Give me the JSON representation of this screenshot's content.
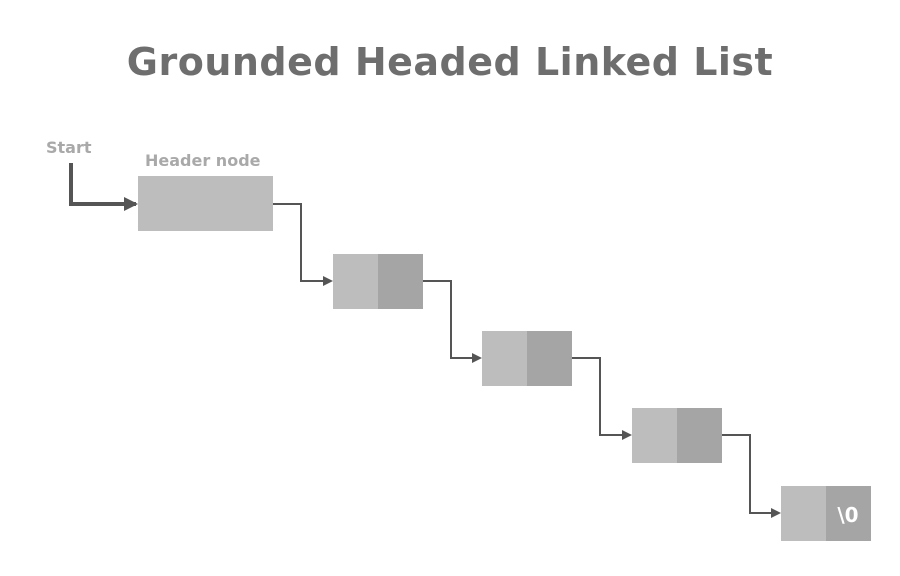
{
  "title": "Grounded Headed Linked List",
  "labels": {
    "start": "Start",
    "header_node": "Header node",
    "null_marker": "\\0"
  },
  "colors": {
    "title": "#6e6e6e",
    "label": "#a9a9a9",
    "node_data": "#bdbdbd",
    "node_next": "#a5a5a5",
    "arrow": "#555555"
  },
  "nodes": [
    {
      "role": "header"
    },
    {
      "role": "data"
    },
    {
      "role": "data"
    },
    {
      "role": "data"
    },
    {
      "role": "data",
      "null_terminated": true
    }
  ]
}
